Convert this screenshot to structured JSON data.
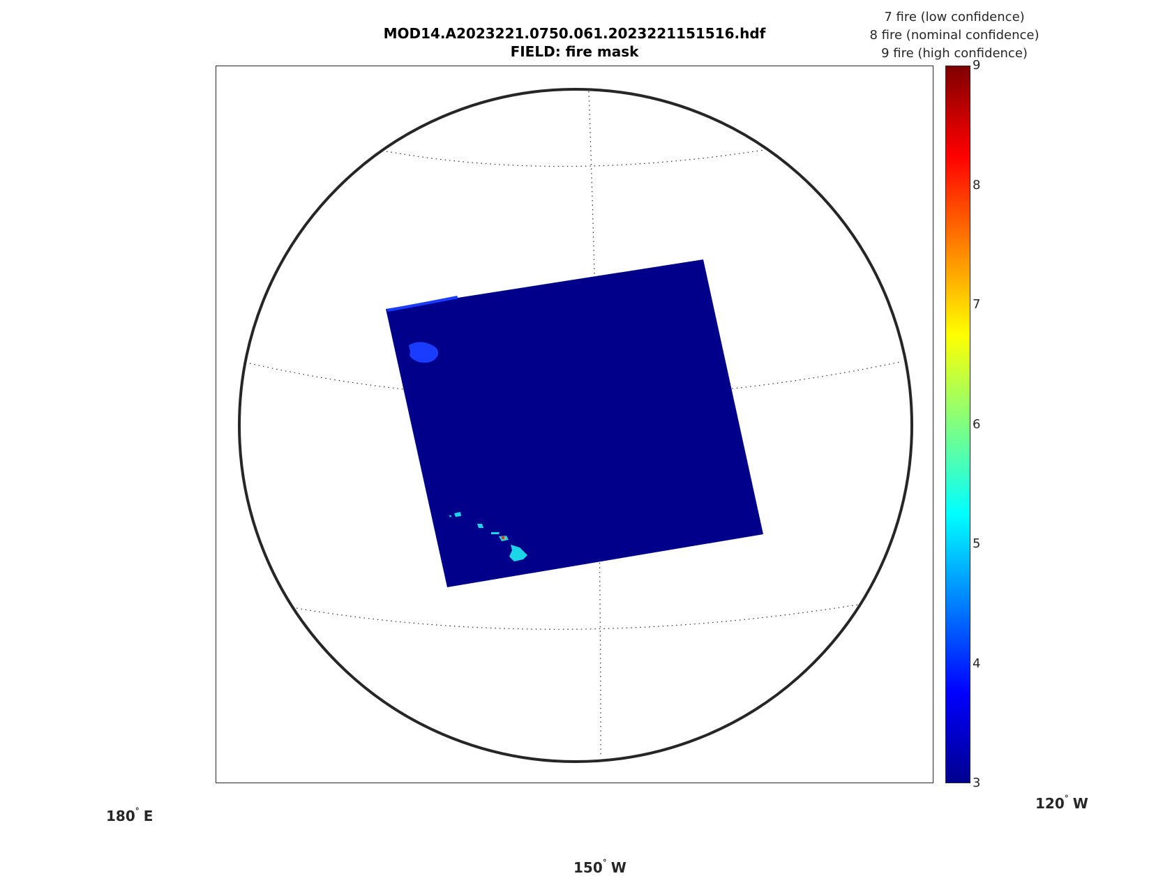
{
  "title": {
    "line1": "MOD14.A2023221.0750.061.2023221151516.hdf",
    "line2": "FIELD: fire mask"
  },
  "legend_notes": [
    "7 fire (low confidence)",
    "8 fire (nominal confidence)",
    "9 fire (high confidence)"
  ],
  "colorbar": {
    "ticks": [
      "3",
      "4",
      "5",
      "6",
      "7",
      "8",
      "9"
    ],
    "min": 3,
    "max": 9,
    "colormap": "jet"
  },
  "longitude_labels": {
    "left": {
      "value": "180",
      "unit": "E"
    },
    "center": {
      "value": "150",
      "unit": "W"
    },
    "right": {
      "value": "120",
      "unit": "W"
    }
  },
  "degree_symbol": "°",
  "colors": {
    "swath_background": "#00008b",
    "cloud": "#1a3cff",
    "land": "#1ad6e6",
    "fire": "#ff3000",
    "globe_outline": "#262626"
  }
}
